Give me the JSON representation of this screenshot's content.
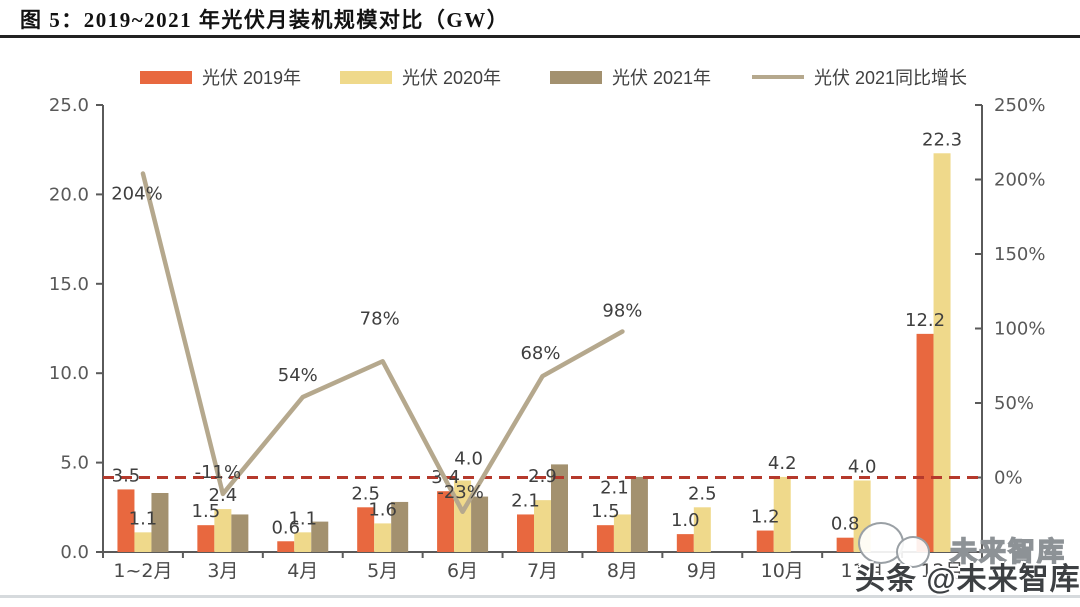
{
  "figure": {
    "title": "图 5：2019~2021 年光伏月装机规模对比（GW）"
  },
  "legend": {
    "items": [
      {
        "label": "光伏 2019年",
        "type": "bar",
        "color": "#E8683F"
      },
      {
        "label": "光伏 2020年",
        "type": "bar",
        "color": "#EFD98B"
      },
      {
        "label": "光伏 2021年",
        "type": "bar",
        "color": "#A3916F"
      },
      {
        "label": "光伏 2021同比增长",
        "type": "line",
        "color": "#B5A88D"
      }
    ]
  },
  "chart_data": {
    "type": "bar",
    "title": "图 5：2019~2021 年光伏月装机规模对比（GW）",
    "categories": [
      "1~2月",
      "3月",
      "4月",
      "5月",
      "6月",
      "7月",
      "8月",
      "9月",
      "10月",
      "11月",
      "12月"
    ],
    "series": [
      {
        "name": "光伏 2019年",
        "type": "bar",
        "unit": "GW",
        "color": "#E8683F",
        "values": [
          3.5,
          1.5,
          0.6,
          2.5,
          3.4,
          2.1,
          1.5,
          1.0,
          1.2,
          0.8,
          12.2
        ],
        "labels_visible": true
      },
      {
        "name": "光伏 2020年",
        "type": "bar",
        "unit": "GW",
        "color": "#EFD98B",
        "values": [
          1.1,
          2.4,
          1.1,
          1.6,
          4.0,
          2.9,
          2.1,
          2.5,
          4.2,
          4.0,
          22.3
        ],
        "labels_visible": true
      },
      {
        "name": "光伏 2021年",
        "type": "bar",
        "unit": "GW",
        "color": "#A3916F",
        "values": [
          3.3,
          2.1,
          1.7,
          2.8,
          3.1,
          4.9,
          4.2,
          null,
          null,
          null,
          null
        ],
        "labels_visible": false
      },
      {
        "name": "光伏 2021同比增长",
        "type": "line",
        "axis": "right",
        "unit": "%",
        "color": "#B5A88D",
        "values": [
          204,
          -11,
          54,
          78,
          -23,
          68,
          98,
          null,
          null,
          null,
          null
        ],
        "labels_visible": true
      }
    ],
    "left_axis": {
      "min": 0,
      "max": 25,
      "tick_labels": [
        "0.0",
        "5.0",
        "10.0",
        "15.0",
        "20.0",
        "25.0"
      ]
    },
    "right_axis": {
      "min": -50,
      "max": 250,
      "tick_labels": [
        "0%",
        "50%",
        "100%",
        "150%",
        "200%",
        "250%"
      ]
    },
    "reference_line": {
      "value_pct": 0,
      "style": "dashed",
      "color": "#B5392C"
    },
    "legend_position": "top",
    "grid": false
  },
  "watermark": {
    "main": "头条 @未来智库",
    "ghost": "未来智库"
  }
}
